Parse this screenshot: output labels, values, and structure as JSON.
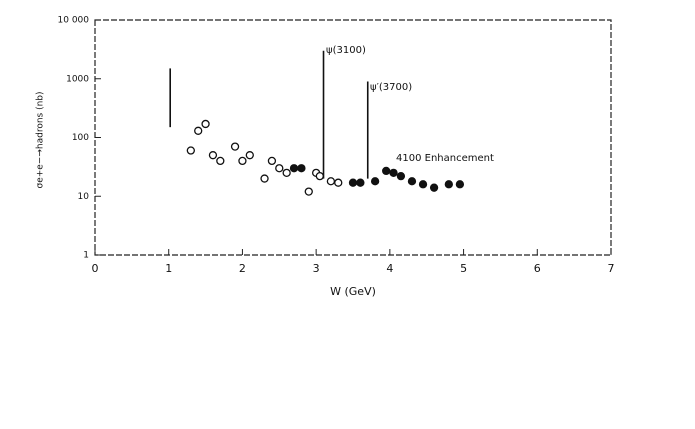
{
  "chart_data": {
    "type": "scatter",
    "xlabel": "W (GeV)",
    "ylabel": "σe+e−→hadrons (nb)",
    "xlim": [
      0,
      7
    ],
    "xticks": [
      0,
      1,
      2,
      3,
      4,
      5,
      6,
      7
    ],
    "ylim": [
      1,
      10000
    ],
    "log_y": true,
    "yticks": [
      1,
      10,
      100,
      1000,
      {
        "value": 10000,
        "label": "10 000"
      }
    ],
    "annotations": [
      "ψ(3100)",
      "ψ′(3700)",
      "4100 Enhancement"
    ],
    "series": [
      {
        "marker": "open",
        "color": "#111",
        "x": [
          1.3,
          1.4,
          1.5,
          1.6,
          1.7,
          1.9,
          2.0,
          2.1,
          2.3,
          2.4,
          2.5,
          2.6,
          2.9,
          3.0,
          3.05,
          3.2,
          3.3
        ],
        "values": [
          60,
          130,
          170,
          50,
          40,
          70,
          40,
          50,
          20,
          40,
          30,
          25,
          12,
          25,
          22,
          18,
          17
        ]
      },
      {
        "marker": "filled",
        "color": "#111",
        "x": [
          2.7,
          2.8,
          3.5,
          3.6,
          3.8,
          3.95,
          4.05,
          4.15,
          4.3,
          4.45,
          4.6,
          4.8,
          4.95
        ],
        "values": [
          30,
          30,
          17,
          17,
          18,
          27,
          25,
          22,
          18,
          16,
          14,
          16,
          16
        ]
      },
      {
        "marker": "spike",
        "color": "#111",
        "x": [
          1.02,
          3.1,
          3.7
        ],
        "values": [
          1500,
          3000,
          900
        ],
        "base": [
          150,
          20,
          20
        ]
      }
    ]
  }
}
